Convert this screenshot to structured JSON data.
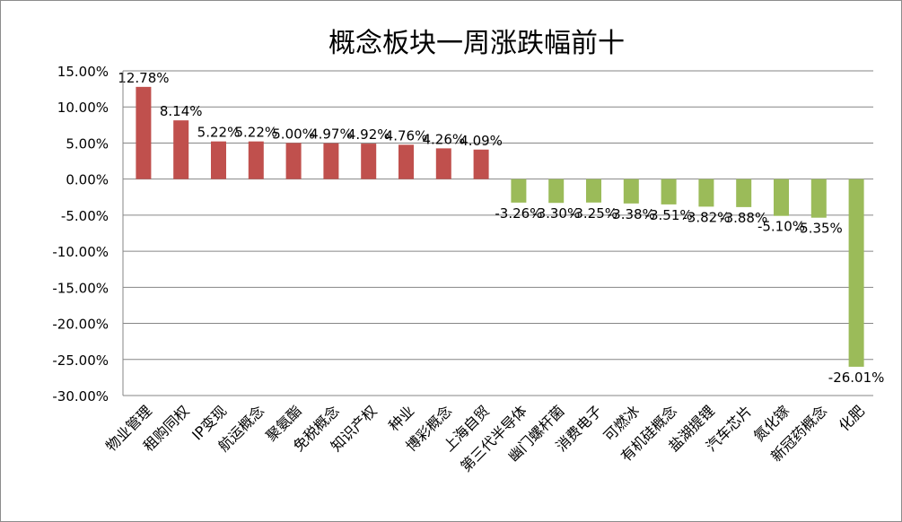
{
  "chart_data": {
    "type": "bar",
    "title": "概念板块一周涨跌幅前十",
    "categories": [
      "物业管理",
      "租购同权",
      "IP变现",
      "航运概念",
      "聚氨酯",
      "免税概念",
      "知识产权",
      "种业",
      "博彩概念",
      "上海自贸",
      "第三代半导体",
      "幽门螺杆菌",
      "消费电子",
      "可燃冰",
      "有机硅概念",
      "盐湖提锂",
      "汽车芯片",
      "氮化镓",
      "新冠药概念",
      "化肥"
    ],
    "values": [
      12.78,
      8.14,
      5.22,
      5.22,
      5.0,
      4.97,
      4.92,
      4.76,
      4.26,
      4.09,
      -3.26,
      -3.3,
      -3.25,
      -3.38,
      -3.51,
      -3.82,
      -3.88,
      -5.1,
      -5.35,
      -26.01
    ],
    "data_labels": [
      "12.78%",
      "8.14%",
      "5.22%",
      "5.22%",
      "5.00%",
      "4.97%",
      "4.92%",
      "4.76%",
      "4.26%",
      "4.09%",
      "-3.26%",
      "-3.30%",
      "-3.25%",
      "-3.38%",
      "-3.51%",
      "-3.82%",
      "-3.88%",
      "-5.10%",
      "-5.35%",
      "-26.01%"
    ],
    "y_ticks": [
      "15.00%",
      "10.00%",
      "5.00%",
      "0.00%",
      "-5.00%",
      "-10.00%",
      "-15.00%",
      "-20.00%",
      "-25.00%",
      "-30.00%"
    ],
    "ylim": [
      -30,
      15
    ],
    "grid": true,
    "colors": {
      "positive": "#c0504d",
      "negative": "#9bbb59",
      "grid": "#868686"
    }
  }
}
